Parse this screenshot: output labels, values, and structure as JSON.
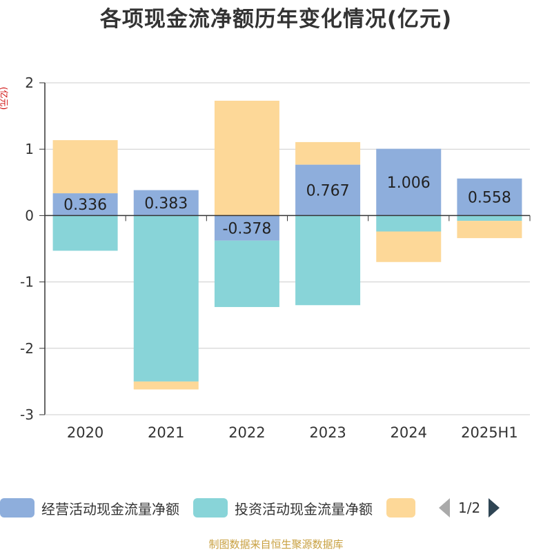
{
  "chart_data": {
    "type": "bar",
    "title": "各项现金流净额历年变化情况(亿元)",
    "ylabel": "(亿元)",
    "xlabel": "",
    "stacked": true,
    "categories": [
      "2020",
      "2021",
      "2022",
      "2023",
      "2024",
      "2025H1"
    ],
    "ylim": [
      -3,
      2
    ],
    "yticks": [
      2,
      1,
      0,
      -1,
      -2,
      -3
    ],
    "grid": true,
    "legend_position": "bottom",
    "series": [
      {
        "name": "经营活动现金流量净额",
        "color": "#8eaedc",
        "values": [
          0.336,
          0.383,
          -0.378,
          0.767,
          1.006,
          0.558
        ],
        "show_labels": true
      },
      {
        "name": "投资活动现金流量净额",
        "color": "#88d4d8",
        "values": [
          -0.53,
          -2.5,
          -1.0,
          -1.35,
          -0.24,
          -0.08
        ],
        "show_labels": false
      },
      {
        "name": "",
        "color": "#fdd898",
        "values": [
          0.8,
          -0.12,
          1.73,
          0.34,
          -0.46,
          -0.26
        ],
        "show_labels": false
      }
    ],
    "pager": "1/2",
    "source": "制图数据来自恒生聚源数据库"
  }
}
